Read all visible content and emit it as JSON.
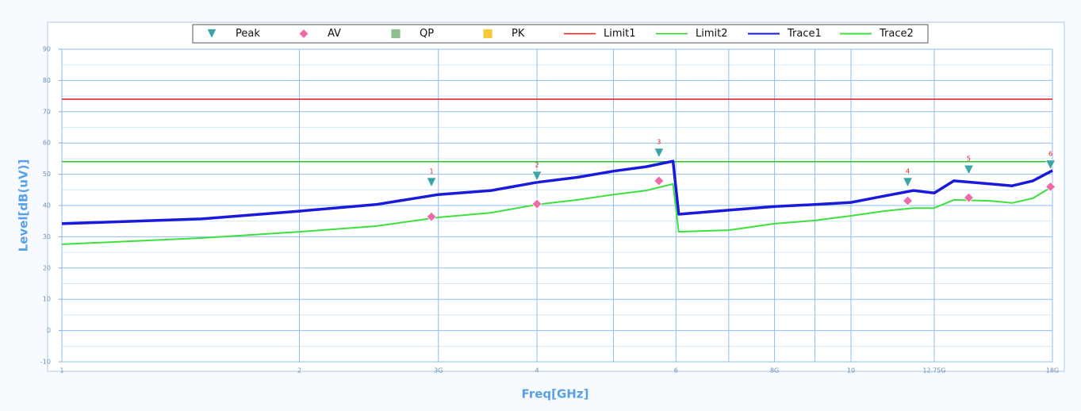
{
  "chart_data": {
    "type": "line",
    "xlabel": "Freq[GHz]",
    "ylabel": "Level[dB(uV)]",
    "xscale": "log",
    "xlim": [
      1,
      18
    ],
    "ylim": [
      -10,
      90
    ],
    "xticks": [
      1,
      2,
      {
        "value": 3,
        "label": "3G"
      },
      4,
      6,
      {
        "value": 8,
        "label": "8G"
      },
      10,
      {
        "value": 12.75,
        "label": "12.75G"
      },
      {
        "value": 18,
        "label": "18G"
      }
    ],
    "xminor": [
      5,
      7,
      9
    ],
    "yticks": [
      -10,
      0,
      10,
      20,
      30,
      40,
      50,
      60,
      70,
      80,
      90
    ],
    "grid": true,
    "legend": "top",
    "series": [
      {
        "name": "Peak",
        "marker": "triangle",
        "color": "#3aa6a6",
        "x": [
          2.94,
          4.0,
          5.71,
          11.8,
          14.1,
          17.9
        ],
        "values": [
          47.4,
          49.4,
          56.8,
          47.4,
          51.4,
          53
        ],
        "point_labels": [
          "1",
          "2",
          "3",
          "4",
          "5",
          "6"
        ]
      },
      {
        "name": "AV",
        "marker": "diamond",
        "color": "#f06aaa",
        "x": [
          2.94,
          4.0,
          5.71,
          11.8,
          14.1,
          17.9
        ],
        "values": [
          36.4,
          40.5,
          47.9,
          41.5,
          42.5,
          46
        ]
      },
      {
        "name": "QP",
        "marker": "square",
        "color": "#8fbf8f",
        "x": [],
        "values": []
      },
      {
        "name": "PK",
        "marker": "square",
        "color": "#f5c93a",
        "x": [],
        "values": []
      },
      {
        "name": "Limit1",
        "color": "#e01c1c",
        "width": 1.5,
        "x": [
          1,
          18
        ],
        "values": [
          74,
          74
        ]
      },
      {
        "name": "Limit2",
        "color": "#22cc22",
        "width": 1.5,
        "x": [
          1,
          18
        ],
        "values": [
          54,
          54
        ]
      },
      {
        "name": "Trace1",
        "color": "#1a1adc",
        "width": 3.5,
        "x": [
          1,
          1.5,
          2,
          2.5,
          3,
          3.5,
          4,
          4.5,
          5,
          5.5,
          5.95,
          6.05,
          7,
          8,
          9,
          10,
          11,
          12,
          12.75,
          13.5,
          15,
          16,
          17,
          18
        ],
        "values": [
          34.2,
          35.7,
          38.2,
          40.3,
          43.5,
          44.8,
          47.4,
          49,
          51,
          52.4,
          54.2,
          37.2,
          38.5,
          39.7,
          40.3,
          41,
          43,
          44.8,
          44,
          47.9,
          46.9,
          46.3,
          47.9,
          51.2
        ]
      },
      {
        "name": "Trace2",
        "color": "#3ee03e",
        "width": 2,
        "x": [
          1,
          1.5,
          2,
          2.5,
          3,
          3.5,
          4,
          4.5,
          5,
          5.5,
          5.95,
          6.05,
          7,
          8,
          9,
          10,
          11,
          12,
          12.75,
          13.5,
          15,
          16,
          17,
          18
        ],
        "values": [
          27.6,
          29.6,
          31.6,
          33.4,
          36.2,
          37.7,
          40.3,
          41.8,
          43.5,
          44.8,
          46.9,
          31.6,
          32.1,
          34.2,
          35.2,
          36.7,
          38.2,
          39.2,
          39.2,
          41.8,
          41.5,
          40.8,
          42.3,
          46.1
        ]
      }
    ]
  }
}
